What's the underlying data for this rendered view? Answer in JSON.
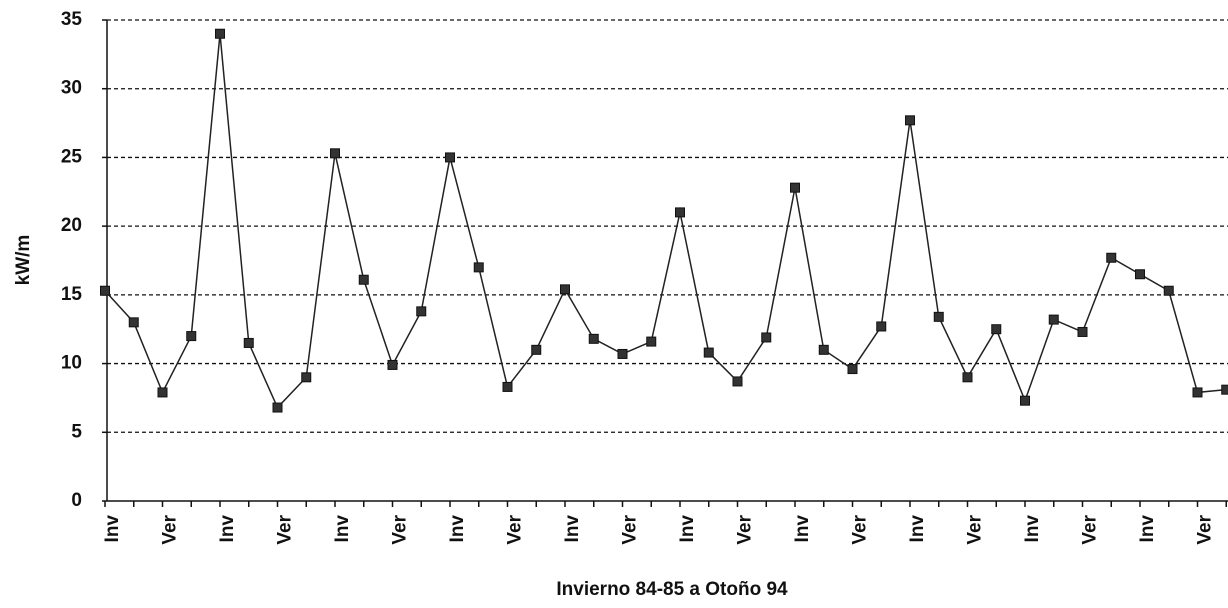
{
  "chart_data": {
    "type": "line",
    "y_label": "kW/m",
    "x_label": "Invierno 84-85 a Otoño 94",
    "categories": [
      "Inv",
      null,
      "Ver",
      null,
      "Inv",
      null,
      "Ver",
      null,
      "Inv",
      null,
      "Ver",
      null,
      "Inv",
      null,
      "Ver",
      null,
      "Inv",
      null,
      "Ver",
      null,
      "Inv",
      null,
      "Ver",
      null,
      "Inv",
      null,
      "Ver",
      null,
      "Inv",
      null,
      "Ver",
      null,
      "Inv",
      null,
      "Ver",
      null,
      "Inv",
      null,
      "Ver",
      null
    ],
    "series": [
      {
        "color": "#222222",
        "values": [
          15.3,
          13,
          7.9,
          12,
          34,
          11.5,
          6.8,
          9,
          25.3,
          16.1,
          9.9,
          13.8,
          25,
          17,
          8.3,
          11,
          15.4,
          11.8,
          10.7,
          11.6,
          21,
          10.8,
          8.7,
          11.9,
          22.8,
          11,
          9.6,
          12.7,
          27.7,
          13.4,
          9,
          12.5,
          7.3,
          13.2,
          12.3,
          17.7,
          16.5,
          15.3,
          7.9,
          8.1
        ]
      }
    ],
    "ylim": [
      0,
      35
    ],
    "yticks": [
      0,
      5,
      10,
      15,
      20,
      25,
      30,
      35
    ],
    "grid": true
  }
}
